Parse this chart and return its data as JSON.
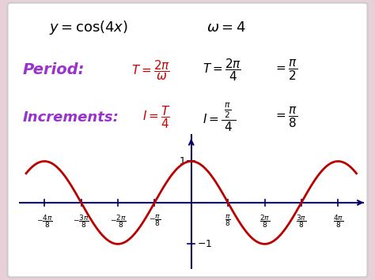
{
  "background_color": "#e8d0d8",
  "box_facecolor": "#ffffff",
  "curve_color": "#bb0000",
  "axis_color": "#000066",
  "text_color_black": "#000000",
  "text_color_red": "#cc0000",
  "text_color_purple": "#9933CC",
  "omega": 4,
  "figsize": [
    4.74,
    3.55
  ],
  "dpi": 100
}
